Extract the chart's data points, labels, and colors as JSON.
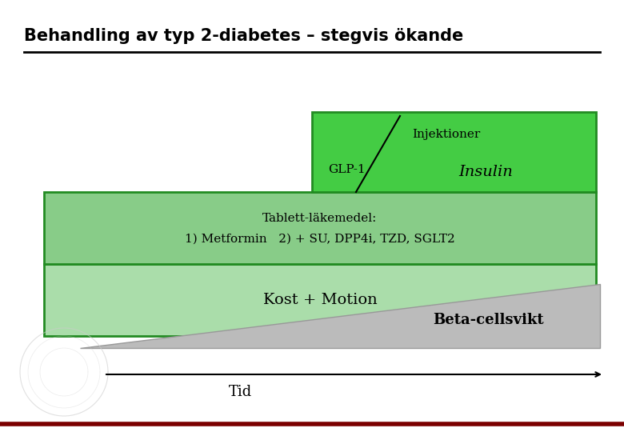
{
  "title": "Behandling av typ 2-diabetes – stegvis ökande",
  "title_fontsize": 15,
  "bg_color": "#ffffff",
  "title_color": "#000000",
  "box_kost_color": "#aaddaa",
  "box_kost_edgecolor": "#228B22",
  "box_tablett_color": "#88cc88",
  "box_tablett_edgecolor": "#228B22",
  "box_inject_color": "#44cc44",
  "box_inject_edgecolor": "#228B22",
  "triangle_color": "#bbbbbb",
  "triangle_edgecolor": "#999999",
  "kost_label": "Kost + Motion",
  "tablett_label1": "Tablett-läkemedel:",
  "tablett_label2": "1) Metformin   2) + SU, DPP4i, TZD, SGLT2",
  "inject_label1": "Injektioner",
  "inject_label2": "GLP-1",
  "inject_label3": "Insulin",
  "beta_label": "Beta-cellsvikt",
  "tid_label": "Tid",
  "arrow_color": "#000000",
  "line_color": "#000000",
  "bottom_line_color": "#7B0000",
  "text_color": "#000000",
  "kost_fontsize": 14,
  "tablett_fontsize": 11,
  "inject_fontsize": 11,
  "insulin_fontsize": 14,
  "beta_fontsize": 13,
  "tid_fontsize": 13
}
